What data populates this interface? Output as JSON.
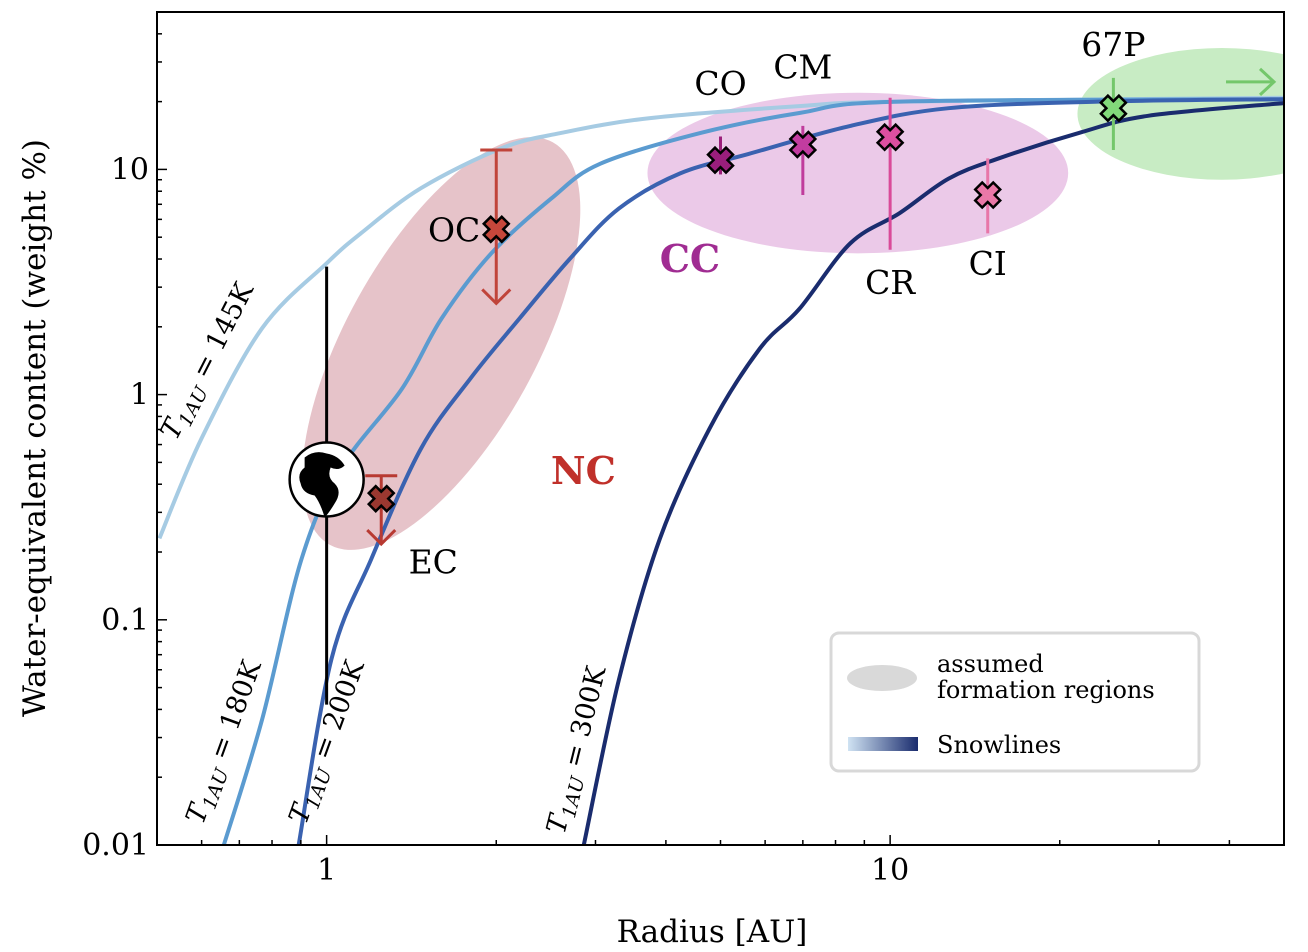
{
  "chart_data": {
    "type": "line",
    "title": "",
    "xlabel": "Radius [AU]",
    "ylabel": "Water-equivalent content (weight %)",
    "xscale": "log",
    "yscale": "log",
    "xlim": [
      0.5,
      50
    ],
    "ylim": [
      0.01,
      50
    ],
    "xticks": [
      {
        "value": 1,
        "label": "1"
      },
      {
        "value": 10,
        "label": "10"
      }
    ],
    "yticks": [
      {
        "value": 0.01,
        "label": "0.01"
      },
      {
        "value": 0.1,
        "label": "0.1"
      },
      {
        "value": 1,
        "label": "1"
      },
      {
        "value": 10,
        "label": "10"
      }
    ],
    "grid": false,
    "series": [
      {
        "name": "T1AU = 145K",
        "symbol": "T",
        "sub": "1AU",
        "value_label": " = 145K",
        "color": "#a6cbe3",
        "x": [
          0.505,
          0.6,
          0.768,
          1.0,
          1.15,
          1.47,
          2.04,
          2.6,
          3.75,
          6.9,
          10.4,
          50
        ],
        "y": [
          0.23,
          0.64,
          1.97,
          3.83,
          5.2,
          8.25,
          12.4,
          14.5,
          16.9,
          19.1,
          20.0,
          20.8
        ]
      },
      {
        "name": "T1AU = 180K",
        "symbol": "T",
        "sub": "1AU",
        "value_label": " = 180K",
        "color": "#5b9bd0",
        "x": [
          0.657,
          0.768,
          0.903,
          1.06,
          1.36,
          1.6,
          1.96,
          2.5,
          3.06,
          4.6,
          6.9,
          10.4,
          50
        ],
        "y": [
          0.01,
          0.036,
          0.187,
          0.47,
          1.06,
          2.18,
          4.24,
          7.4,
          10.6,
          14.5,
          17.8,
          20.0,
          20.5
        ]
      },
      {
        "name": "T1AU = 200K",
        "symbol": "T",
        "sub": "1AU",
        "value_label": " = 200K",
        "color": "#3a62b0",
        "x": [
          0.892,
          1.02,
          1.2,
          1.47,
          1.8,
          2.2,
          2.7,
          3.3,
          4.24,
          5.6,
          8.5,
          12.7,
          23.4,
          50
        ],
        "y": [
          0.01,
          0.067,
          0.186,
          0.575,
          1.18,
          2.18,
          4.0,
          6.7,
          9.6,
          11.7,
          15.6,
          18.7,
          20.0,
          20.5
        ]
      },
      {
        "name": "T1AU = 300K",
        "symbol": "T",
        "sub": "1AU",
        "value_label": " = 300K",
        "color": "#1a2c6e",
        "x": [
          2.86,
          3.3,
          3.9,
          4.78,
          5.87,
          6.9,
          8.5,
          10.4,
          12.7,
          15.6,
          21.6,
          28.7,
          50
        ],
        "y": [
          0.01,
          0.054,
          0.228,
          0.706,
          1.6,
          2.4,
          4.7,
          6.4,
          9.1,
          11.2,
          14.5,
          17.3,
          19.7
        ]
      }
    ],
    "regions": [
      {
        "name": "NC",
        "color": "#e6c3c9",
        "label_color": "#c0302a",
        "xrange": [
          0.97,
          2.63
        ],
        "yrange": [
          0.217,
          13.1
        ],
        "label_at": [
          2.5,
          0.4
        ]
      },
      {
        "name": "CC",
        "color": "#ebc9e8",
        "label_color": "#a02c92",
        "xrange": [
          3.71,
          20.7
        ],
        "yrange": [
          4.24,
          21.9
        ],
        "label_at": [
          3.9,
          3.5
        ]
      },
      {
        "name": "",
        "color": "#c8ecc4",
        "label_color": "#000",
        "xrange": [
          21.5,
          70
        ],
        "yrange": [
          9.0,
          34.6
        ],
        "label_at": null
      }
    ],
    "points": [
      {
        "label": "Earth",
        "x": 1.0,
        "y": 0.42,
        "err_low": 0.042,
        "err_high": 3.7,
        "color": "#000000",
        "marker": "earth",
        "show_label": false
      },
      {
        "label": "EC",
        "x": 1.25,
        "y": 0.345,
        "err_high": 0.436,
        "arrow_down_to": 0.217,
        "color": "#b83a32",
        "fill": "#9b3830",
        "label_pos": "below-right"
      },
      {
        "label": "OC",
        "x": 2.0,
        "y": 5.42,
        "err_high": 12.2,
        "arrow_down_to": 2.54,
        "color": "#c0443a",
        "fill": "#c6473b",
        "label_pos": "left"
      },
      {
        "label": "CO",
        "x": 5.0,
        "y": 11.0,
        "err_low": 9.5,
        "err_high": 14.0,
        "color": "#9b1f7a",
        "fill": "#9a1e7c",
        "label_pos": "above"
      },
      {
        "label": "CM",
        "x": 7.0,
        "y": 12.9,
        "err_low": 7.7,
        "err_high": 15.6,
        "color": "#c03c9c",
        "fill": "#c23ca0",
        "label_pos": "above"
      },
      {
        "label": "CR",
        "x": 10.0,
        "y": 13.9,
        "err_low": 4.4,
        "err_high": 20.8,
        "color": "#d94a99",
        "fill": "#dd4fa0",
        "label_pos": "below"
      },
      {
        "label": "CI",
        "x": 14.9,
        "y": 7.7,
        "err_low": 5.2,
        "err_high": 11.2,
        "color": "#e876a8",
        "fill": "#ea78a8",
        "label_pos": "below"
      },
      {
        "label": "67P",
        "x": 24.9,
        "y": 18.7,
        "err_low": 12.2,
        "err_high": 25.5,
        "arrow_right_to": 48,
        "color": "#74c76b",
        "fill": "#82d97a",
        "label_pos": "above"
      }
    ],
    "legend": {
      "placement": "lower-right",
      "entries": [
        {
          "label_line1": "assumed",
          "label_line2": "formation regions",
          "swatch": "ellipse",
          "color": "#d9d9d9"
        },
        {
          "label_line1": "Snowlines",
          "swatch": "gradient",
          "colors": [
            "#d0e3f3",
            "#1a2c6e"
          ]
        }
      ]
    }
  }
}
